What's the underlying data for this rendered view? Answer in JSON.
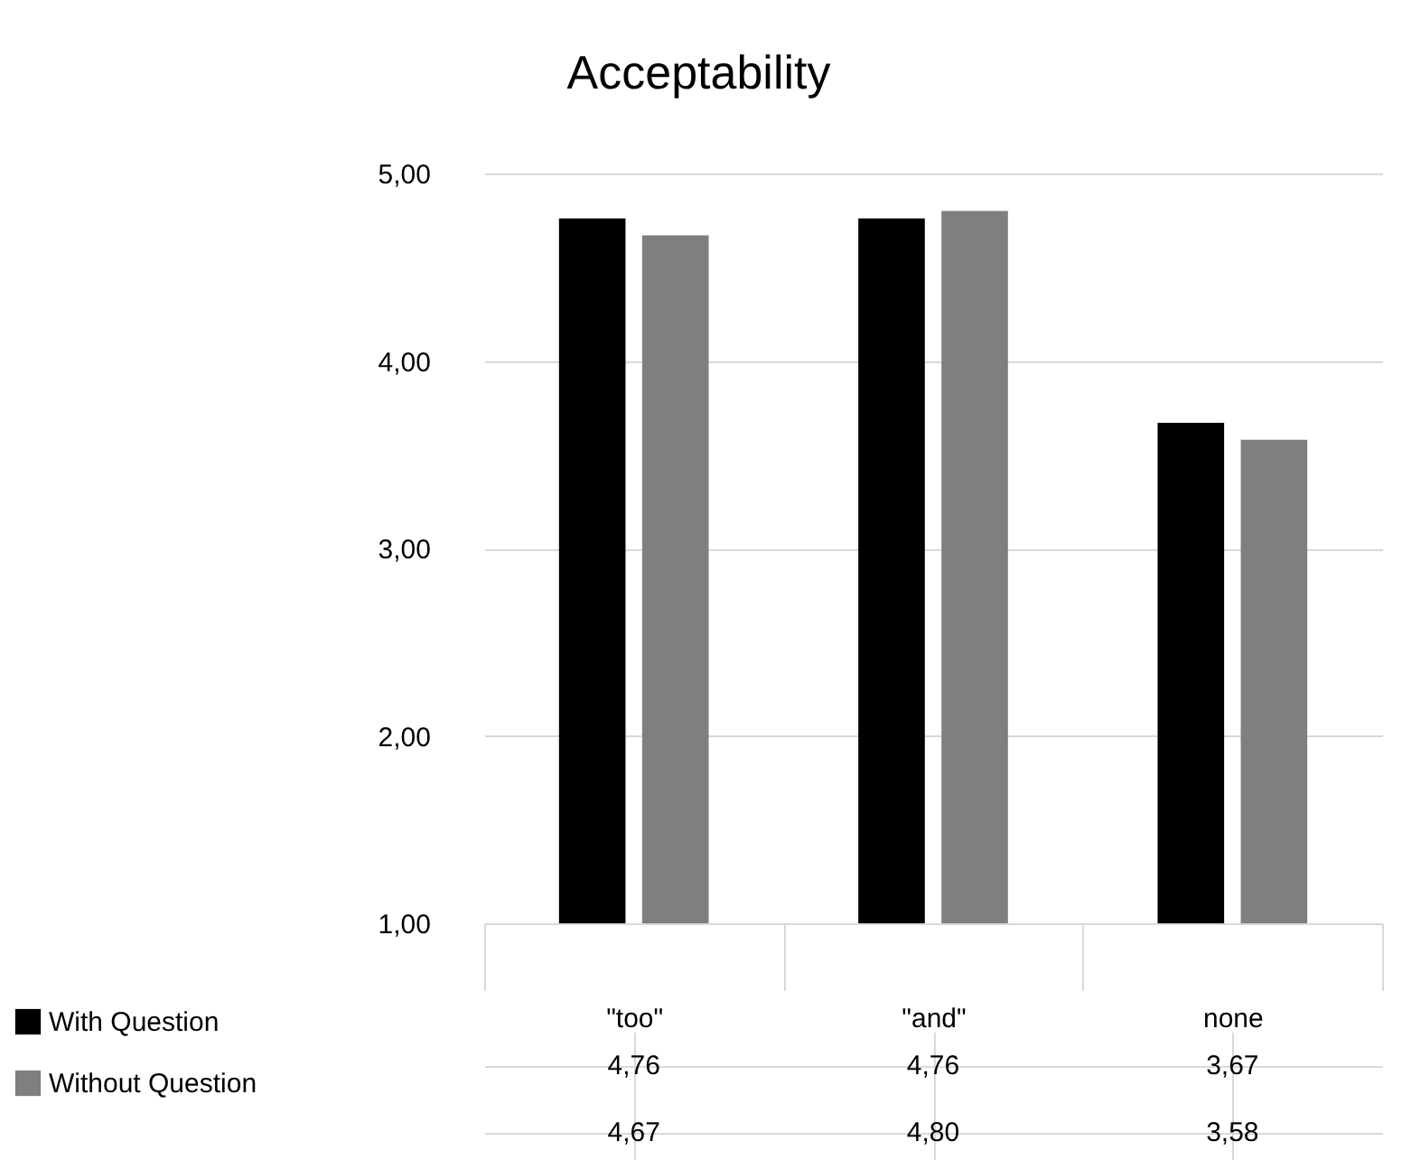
{
  "chart_data": {
    "type": "bar",
    "title": "Acceptability",
    "categories": [
      "\"too\"",
      "\"and\"",
      "none"
    ],
    "series": [
      {
        "name": "With Question",
        "color": "#000000",
        "values": [
          4.76,
          4.76,
          3.67
        ],
        "value_labels": [
          "4,76",
          "4,76",
          "3,67"
        ]
      },
      {
        "name": "Without Question",
        "color": "#7f7f7f",
        "values": [
          4.67,
          4.8,
          3.58
        ],
        "value_labels": [
          "4,67",
          "4,80",
          "3,58"
        ]
      }
    ],
    "ylim": [
      1,
      5
    ],
    "yticks": [
      {
        "value": 1,
        "label": "1,00"
      },
      {
        "value": 2,
        "label": "2,00"
      },
      {
        "value": 3,
        "label": "3,00"
      },
      {
        "value": 4,
        "label": "4,00"
      },
      {
        "value": 5,
        "label": "5,00"
      }
    ],
    "grid": "y",
    "legend": "bottom left"
  }
}
